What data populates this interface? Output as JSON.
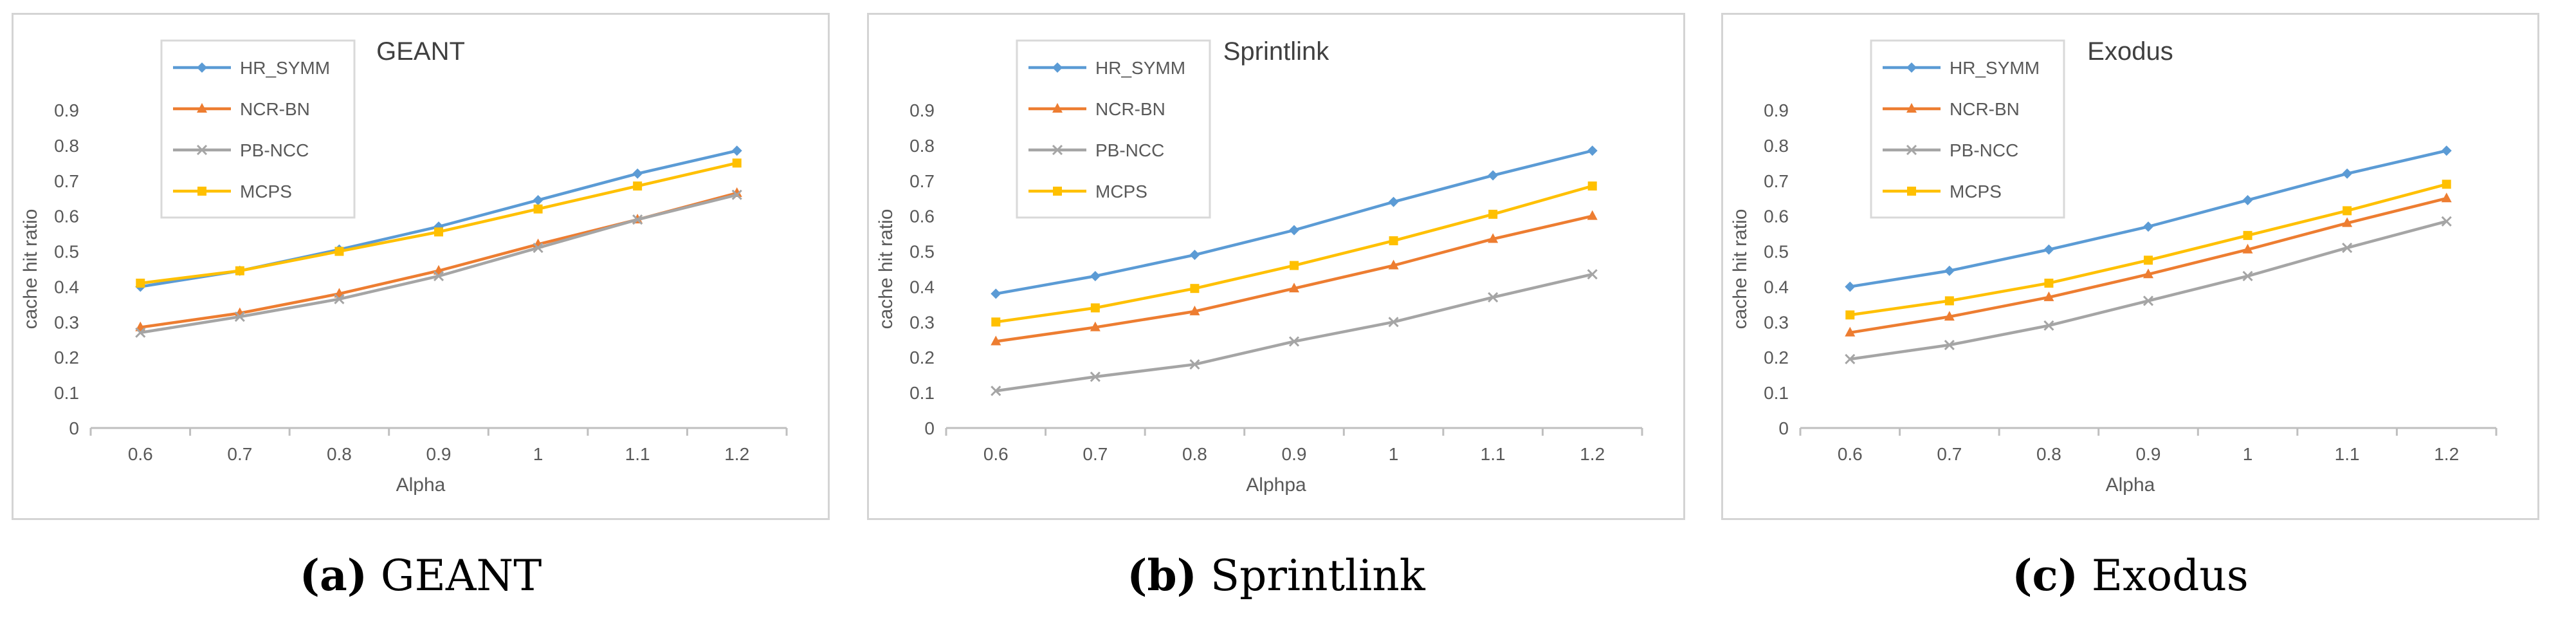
{
  "chart_data": [
    {
      "type": "line",
      "title": "GEANT",
      "xlabel": "Alpha",
      "ylabel": "cache hit ratio",
      "categories": [
        "0.6",
        "0.7",
        "0.8",
        "0.9",
        "1",
        "1.1",
        "1.2"
      ],
      "ylim": [
        0,
        0.9
      ],
      "yticks": [
        "0",
        "0.1",
        "0.2",
        "0.3",
        "0.4",
        "0.5",
        "0.6",
        "0.7",
        "0.8",
        "0.9"
      ],
      "legend_position": "top-left",
      "series": [
        {
          "name": "HR_SYMM",
          "color": "#5b9bd5",
          "marker": "diamond",
          "values": [
            0.4,
            0.445,
            0.505,
            0.57,
            0.645,
            0.72,
            0.785
          ]
        },
        {
          "name": "NCR-BN",
          "color": "#ed7d31",
          "marker": "triangle",
          "values": [
            0.285,
            0.325,
            0.38,
            0.445,
            0.52,
            0.59,
            0.665
          ]
        },
        {
          "name": "PB-NCC",
          "color": "#a5a5a5",
          "marker": "x",
          "values": [
            0.27,
            0.315,
            0.365,
            0.43,
            0.51,
            0.59,
            0.66
          ]
        },
        {
          "name": "MCPS",
          "color": "#ffc000",
          "marker": "square",
          "values": [
            0.41,
            0.445,
            0.5,
            0.555,
            0.62,
            0.685,
            0.75
          ]
        }
      ]
    },
    {
      "type": "line",
      "title": "Sprintlink",
      "xlabel": "Alphpa",
      "ylabel": "cache hit ratio",
      "categories": [
        "0.6",
        "0.7",
        "0.8",
        "0.9",
        "1",
        "1.1",
        "1.2"
      ],
      "ylim": [
        0,
        0.9
      ],
      "yticks": [
        "0",
        "0.1",
        "0.2",
        "0.3",
        "0.4",
        "0.5",
        "0.6",
        "0.7",
        "0.8",
        "0.9"
      ],
      "legend_position": "top-left",
      "series": [
        {
          "name": "HR_SYMM",
          "color": "#5b9bd5",
          "marker": "diamond",
          "values": [
            0.38,
            0.43,
            0.49,
            0.56,
            0.64,
            0.715,
            0.785
          ]
        },
        {
          "name": "NCR-BN",
          "color": "#ed7d31",
          "marker": "triangle",
          "values": [
            0.245,
            0.285,
            0.33,
            0.395,
            0.46,
            0.535,
            0.6
          ]
        },
        {
          "name": "PB-NCC",
          "color": "#a5a5a5",
          "marker": "x",
          "values": [
            0.105,
            0.145,
            0.18,
            0.245,
            0.3,
            0.37,
            0.435
          ]
        },
        {
          "name": "MCPS",
          "color": "#ffc000",
          "marker": "square",
          "values": [
            0.3,
            0.34,
            0.395,
            0.46,
            0.53,
            0.605,
            0.685
          ]
        }
      ]
    },
    {
      "type": "line",
      "title": "Exodus",
      "xlabel": "Alpha",
      "ylabel": "cache hit ratio",
      "categories": [
        "0.6",
        "0.7",
        "0.8",
        "0.9",
        "1",
        "1.1",
        "1.2"
      ],
      "ylim": [
        0,
        0.9
      ],
      "yticks": [
        "0",
        "0.1",
        "0.2",
        "0.3",
        "0.4",
        "0.5",
        "0.6",
        "0.7",
        "0.8",
        "0.9"
      ],
      "legend_position": "top-left",
      "series": [
        {
          "name": "HR_SYMM",
          "color": "#5b9bd5",
          "marker": "diamond",
          "values": [
            0.4,
            0.445,
            0.505,
            0.57,
            0.645,
            0.72,
            0.785
          ]
        },
        {
          "name": "NCR-BN",
          "color": "#ed7d31",
          "marker": "triangle",
          "values": [
            0.27,
            0.315,
            0.37,
            0.435,
            0.505,
            0.58,
            0.65
          ]
        },
        {
          "name": "PB-NCC",
          "color": "#a5a5a5",
          "marker": "x",
          "values": [
            0.195,
            0.235,
            0.29,
            0.36,
            0.43,
            0.51,
            0.585
          ]
        },
        {
          "name": "MCPS",
          "color": "#ffc000",
          "marker": "square",
          "values": [
            0.32,
            0.36,
            0.41,
            0.475,
            0.545,
            0.615,
            0.69
          ]
        }
      ]
    }
  ],
  "captions": [
    {
      "letter": "(a)",
      "text": " GEANT"
    },
    {
      "letter": "(b)",
      "text": " Sprintlink"
    },
    {
      "letter": "(c)",
      "text": " Exodus"
    }
  ]
}
